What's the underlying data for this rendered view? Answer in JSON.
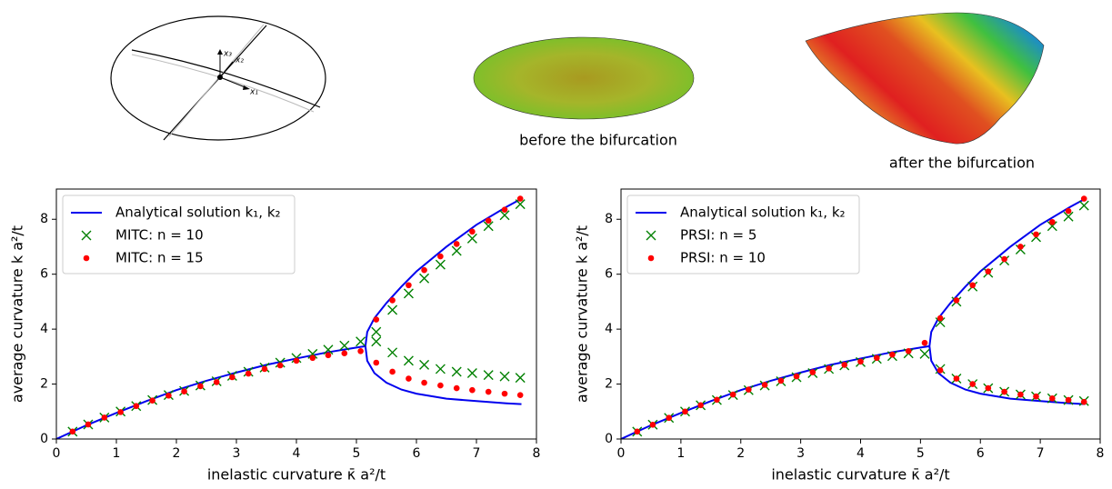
{
  "illustration_labels": [
    "x₃",
    "x₂",
    "x₁"
  ],
  "captions": [
    "before the bifurcation",
    "after the bifurcation"
  ],
  "chart_data": [
    {
      "type": "line",
      "xlabel": "inelastic curvature κ̄ a²/t",
      "ylabel": "average curvature k a²/t",
      "xlim": [
        0,
        8
      ],
      "ylim": [
        0,
        9.1
      ],
      "xticks": [
        0,
        1,
        2,
        3,
        4,
        5,
        6,
        7,
        8
      ],
      "yticks": [
        0,
        2,
        4,
        6,
        8
      ],
      "legend": "upper left",
      "series": [
        {
          "name": "Analytical solution k₁, k₂",
          "color": "#0000ee",
          "marker": "line",
          "x": [
            0,
            0.5,
            1,
            1.5,
            2,
            2.5,
            3,
            3.5,
            4,
            4.5,
            5,
            5.15,
            5.18,
            5.3,
            5.5,
            5.75,
            6,
            6.5,
            7,
            7.5,
            7.75,
            null,
            5.15,
            5.18,
            5.3,
            5.5,
            5.75,
            6,
            6.5,
            7,
            7.5,
            7.75
          ],
          "values": [
            0,
            0.5,
            0.95,
            1.38,
            1.78,
            2.12,
            2.42,
            2.7,
            2.93,
            3.15,
            3.33,
            3.38,
            3.9,
            4.4,
            4.95,
            5.55,
            6.1,
            7.0,
            7.8,
            8.45,
            8.75,
            null,
            3.38,
            2.85,
            2.4,
            2.05,
            1.8,
            1.65,
            1.47,
            1.38,
            1.3,
            1.27
          ]
        },
        {
          "name": "MITC: n = 10",
          "color": "#008000",
          "marker": "x",
          "x": [
            0.27,
            0.53,
            0.8,
            1.07,
            1.33,
            1.6,
            1.87,
            2.13,
            2.4,
            2.67,
            2.93,
            3.2,
            3.47,
            3.73,
            4.0,
            4.27,
            4.53,
            4.8,
            5.07,
            5.33,
            5.33,
            5.6,
            5.6,
            5.87,
            5.87,
            6.13,
            6.13,
            6.4,
            6.4,
            6.67,
            6.67,
            6.93,
            6.93,
            7.2,
            7.2,
            7.47,
            7.47,
            7.73,
            7.73
          ],
          "values": [
            0.27,
            0.53,
            0.78,
            1.0,
            1.2,
            1.42,
            1.6,
            1.75,
            1.95,
            2.1,
            2.3,
            2.45,
            2.6,
            2.78,
            2.95,
            3.1,
            3.25,
            3.4,
            3.55,
            3.9,
            3.55,
            4.7,
            3.15,
            5.3,
            2.85,
            5.85,
            2.7,
            6.35,
            2.55,
            6.85,
            2.45,
            7.3,
            2.4,
            7.75,
            2.33,
            8.15,
            2.28,
            8.55,
            2.23
          ]
        },
        {
          "name": "MITC: n = 15",
          "color": "#ff0000",
          "marker": "dot",
          "x": [
            0.27,
            0.53,
            0.8,
            1.07,
            1.33,
            1.6,
            1.87,
            2.13,
            2.4,
            2.67,
            2.93,
            3.2,
            3.47,
            3.73,
            4.0,
            4.27,
            4.53,
            4.8,
            5.07,
            5.33,
            5.33,
            5.6,
            5.6,
            5.87,
            5.87,
            6.13,
            6.13,
            6.4,
            6.4,
            6.67,
            6.67,
            6.93,
            6.93,
            7.2,
            7.2,
            7.47,
            7.47,
            7.73,
            7.73
          ],
          "values": [
            0.27,
            0.53,
            0.78,
            0.98,
            1.2,
            1.4,
            1.58,
            1.73,
            1.92,
            2.07,
            2.25,
            2.38,
            2.55,
            2.68,
            2.85,
            2.95,
            3.05,
            3.12,
            3.2,
            4.35,
            2.78,
            5.05,
            2.45,
            5.6,
            2.2,
            6.15,
            2.05,
            6.65,
            1.95,
            7.1,
            1.85,
            7.55,
            1.78,
            7.95,
            1.72,
            8.35,
            1.65,
            8.75,
            1.6
          ]
        }
      ]
    },
    {
      "type": "line",
      "xlabel": "inelastic curvature κ̄ a²/t",
      "ylabel": "average curvature k a²/t",
      "xlim": [
        0,
        8
      ],
      "ylim": [
        0,
        9.1
      ],
      "xticks": [
        0,
        1,
        2,
        3,
        4,
        5,
        6,
        7,
        8
      ],
      "yticks": [
        0,
        2,
        4,
        6,
        8
      ],
      "legend": "upper left",
      "series": [
        {
          "name": "Analytical solution k₁, k₂",
          "color": "#0000ee",
          "marker": "line",
          "x": [
            0,
            0.5,
            1,
            1.5,
            2,
            2.5,
            3,
            3.5,
            4,
            4.5,
            5,
            5.15,
            5.18,
            5.3,
            5.5,
            5.75,
            6,
            6.5,
            7,
            7.5,
            7.75,
            null,
            5.15,
            5.18,
            5.3,
            5.5,
            5.75,
            6,
            6.5,
            7,
            7.5,
            7.75
          ],
          "values": [
            0,
            0.5,
            0.95,
            1.38,
            1.78,
            2.12,
            2.42,
            2.7,
            2.93,
            3.15,
            3.33,
            3.38,
            3.9,
            4.4,
            4.95,
            5.55,
            6.1,
            7.0,
            7.8,
            8.45,
            8.75,
            null,
            3.38,
            2.85,
            2.4,
            2.05,
            1.8,
            1.65,
            1.47,
            1.38,
            1.3,
            1.27
          ]
        },
        {
          "name": "PRSI: n = 5",
          "color": "#008000",
          "marker": "x",
          "x": [
            0.27,
            0.53,
            0.8,
            1.07,
            1.33,
            1.6,
            1.87,
            2.13,
            2.4,
            2.67,
            2.93,
            3.2,
            3.47,
            3.73,
            4.0,
            4.27,
            4.53,
            4.8,
            5.07,
            5.33,
            5.33,
            5.6,
            5.6,
            5.87,
            5.87,
            6.13,
            6.13,
            6.4,
            6.4,
            6.67,
            6.67,
            6.93,
            6.93,
            7.2,
            7.2,
            7.47,
            7.47,
            7.73,
            7.73
          ],
          "values": [
            0.27,
            0.52,
            0.77,
            1.0,
            1.23,
            1.42,
            1.6,
            1.78,
            1.95,
            2.1,
            2.25,
            2.4,
            2.55,
            2.68,
            2.8,
            2.92,
            3.02,
            3.12,
            3.1,
            4.25,
            2.55,
            5.0,
            2.2,
            5.55,
            2.0,
            6.05,
            1.85,
            6.5,
            1.72,
            6.9,
            1.62,
            7.35,
            1.55,
            7.75,
            1.48,
            8.1,
            1.42,
            8.5,
            1.38
          ]
        },
        {
          "name": "PRSI: n = 10",
          "color": "#ff0000",
          "marker": "dot",
          "x": [
            0.27,
            0.53,
            0.8,
            1.07,
            1.33,
            1.6,
            1.87,
            2.13,
            2.4,
            2.67,
            2.93,
            3.2,
            3.47,
            3.73,
            4.0,
            4.27,
            4.53,
            4.8,
            5.07,
            5.33,
            5.33,
            5.6,
            5.6,
            5.87,
            5.87,
            6.13,
            6.13,
            6.4,
            6.4,
            6.67,
            6.67,
            6.93,
            6.93,
            7.2,
            7.2,
            7.47,
            7.47,
            7.73,
            7.73
          ],
          "values": [
            0.27,
            0.52,
            0.77,
            1.0,
            1.23,
            1.43,
            1.62,
            1.8,
            1.97,
            2.12,
            2.28,
            2.43,
            2.57,
            2.7,
            2.82,
            2.95,
            3.07,
            3.2,
            3.5,
            4.4,
            2.5,
            5.05,
            2.2,
            5.6,
            2.0,
            6.1,
            1.85,
            6.55,
            1.72,
            7.0,
            1.62,
            7.45,
            1.55,
            7.9,
            1.48,
            8.3,
            1.42,
            8.75,
            1.35
          ]
        }
      ]
    }
  ]
}
